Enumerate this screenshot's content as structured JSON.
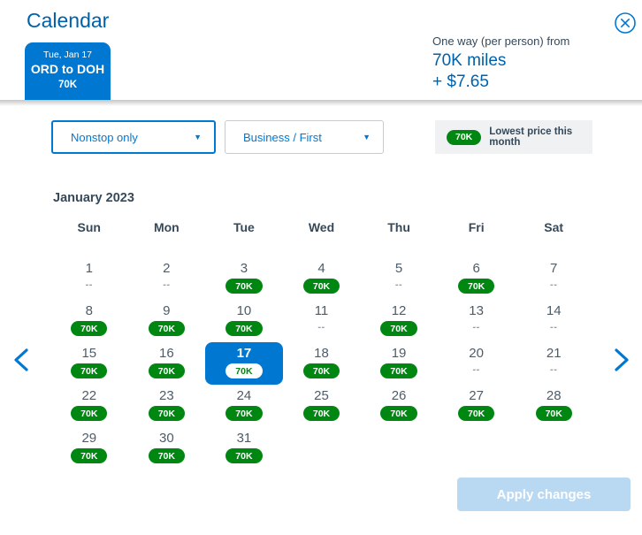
{
  "header": {
    "title": "Calendar",
    "trip_card": {
      "date": "Tue, Jan 17",
      "route": "ORD to DOH",
      "price": "70K"
    },
    "price_summary": {
      "label": "One way (per person) from",
      "miles": "70K miles",
      "taxes": "+ $7.65"
    }
  },
  "filters": {
    "stops_dropdown": {
      "value": "Nonstop only"
    },
    "cabin_dropdown": {
      "value": "Business / First"
    }
  },
  "legend": {
    "badge": "70K",
    "label": "Lowest price this month"
  },
  "calendar": {
    "month": "January 2023",
    "day_headers": [
      "Sun",
      "Mon",
      "Tue",
      "Wed",
      "Thu",
      "Fri",
      "Sat"
    ],
    "days": [
      {
        "day": "1",
        "price": "--"
      },
      {
        "day": "2",
        "price": "--"
      },
      {
        "day": "3",
        "price": "70K"
      },
      {
        "day": "4",
        "price": "70K"
      },
      {
        "day": "5",
        "price": "--"
      },
      {
        "day": "6",
        "price": "70K"
      },
      {
        "day": "7",
        "price": "--"
      },
      {
        "day": "8",
        "price": "70K"
      },
      {
        "day": "9",
        "price": "70K"
      },
      {
        "day": "10",
        "price": "70K"
      },
      {
        "day": "11",
        "price": "--"
      },
      {
        "day": "12",
        "price": "70K"
      },
      {
        "day": "13",
        "price": "--"
      },
      {
        "day": "14",
        "price": "--"
      },
      {
        "day": "15",
        "price": "70K"
      },
      {
        "day": "16",
        "price": "70K"
      },
      {
        "day": "17",
        "price": "70K",
        "selected": true
      },
      {
        "day": "18",
        "price": "70K"
      },
      {
        "day": "19",
        "price": "70K"
      },
      {
        "day": "20",
        "price": "--"
      },
      {
        "day": "21",
        "price": "--"
      },
      {
        "day": "22",
        "price": "70K"
      },
      {
        "day": "23",
        "price": "70K"
      },
      {
        "day": "24",
        "price": "70K"
      },
      {
        "day": "25",
        "price": "70K"
      },
      {
        "day": "26",
        "price": "70K"
      },
      {
        "day": "27",
        "price": "70K"
      },
      {
        "day": "28",
        "price": "70K"
      },
      {
        "day": "29",
        "price": "70K"
      },
      {
        "day": "30",
        "price": "70K"
      },
      {
        "day": "31",
        "price": "70K"
      }
    ]
  },
  "footer": {
    "apply_button": "Apply changes"
  },
  "colors": {
    "brand_blue": "#0078d2",
    "dark_blue": "#0061ab",
    "lowest_price_green": "#008712",
    "text_slate": "#36495a",
    "apply_disabled_blue": "#b9d8f2"
  }
}
